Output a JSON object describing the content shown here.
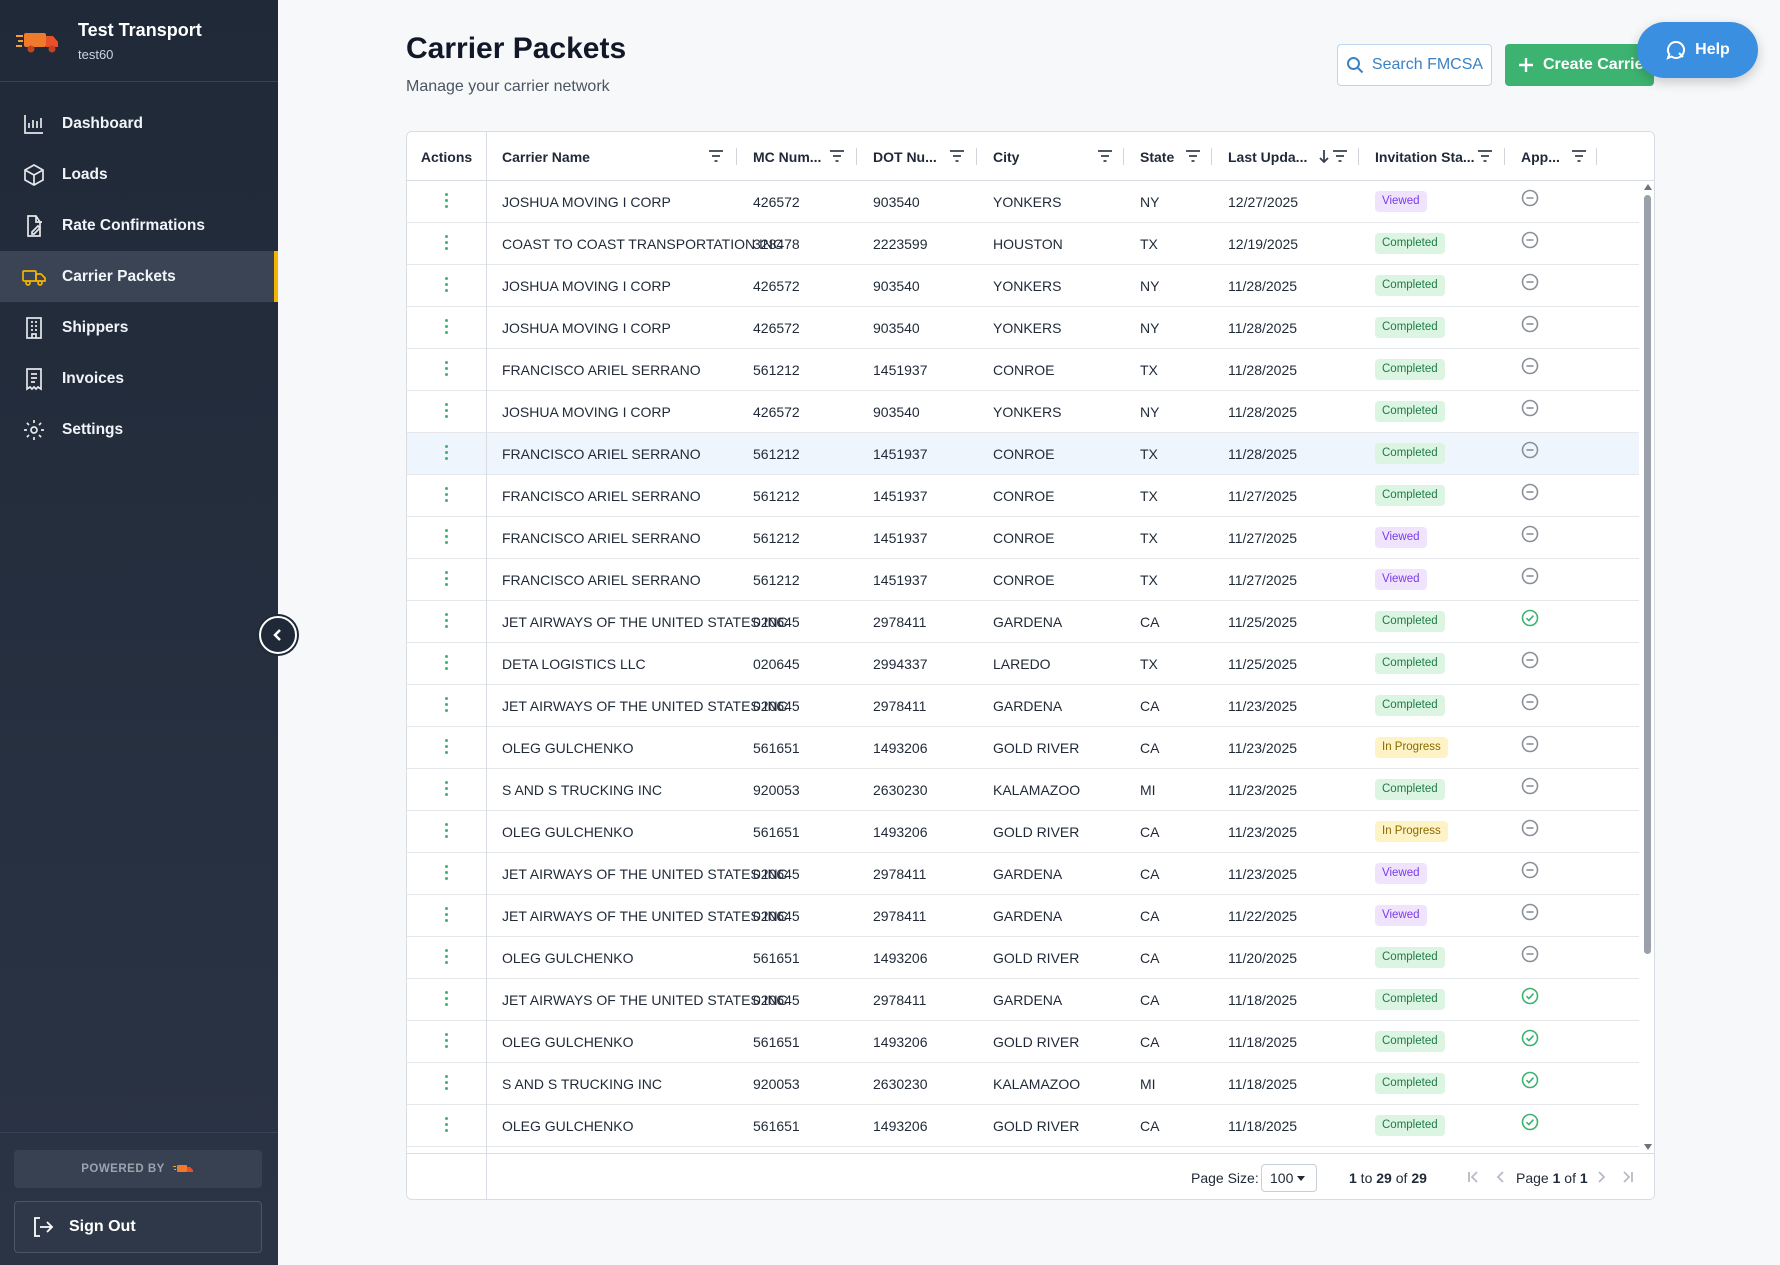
{
  "app": {
    "name": "Test Transport",
    "account": "test60"
  },
  "sidebar": {
    "items": [
      {
        "label": "Dashboard",
        "icon": "bar-chart-icon",
        "active": false
      },
      {
        "label": "Loads",
        "icon": "box-icon",
        "active": false
      },
      {
        "label": "Rate Confirmations",
        "icon": "file-edit-icon",
        "active": false
      },
      {
        "label": "Carrier Packets",
        "icon": "truck-icon",
        "active": true
      },
      {
        "label": "Shippers",
        "icon": "building-icon",
        "active": false
      },
      {
        "label": "Invoices",
        "icon": "receipt-icon",
        "active": false
      },
      {
        "label": "Settings",
        "icon": "gear-icon",
        "active": false
      }
    ],
    "powered_by": "POWERED BY",
    "sign_out": "Sign Out"
  },
  "header": {
    "title": "Carrier Packets",
    "subtitle": "Manage your carrier network",
    "search_fmcsa": "Search FMCSA",
    "create_carrier": "Create Carrier",
    "help": "Help"
  },
  "colors": {
    "accent_green": "#3cb371",
    "accent_blue": "#3b8fe0",
    "active_nav": "#f5b301",
    "sidebar_bg": "#1f2937"
  },
  "table": {
    "columns": {
      "actions": "Actions",
      "carrier_name": "Carrier Name",
      "mc_number": "MC Num...",
      "dot_number": "DOT Nu...",
      "city": "City",
      "state": "State",
      "last_updated": "Last Upda...",
      "invitation_status": "Invitation Sta...",
      "approved": "App..."
    },
    "rows": [
      {
        "name": "JOSHUA MOVING I CORP",
        "mc": "426572",
        "dot": "903540",
        "city": "YONKERS",
        "state": "NY",
        "updated": "12/27/2025",
        "status": "Viewed",
        "approved": false
      },
      {
        "name": "COAST TO COAST TRANSPORTATION INC",
        "mc": "328478",
        "dot": "2223599",
        "city": "HOUSTON",
        "state": "TX",
        "updated": "12/19/2025",
        "status": "Completed",
        "approved": false
      },
      {
        "name": "JOSHUA MOVING I CORP",
        "mc": "426572",
        "dot": "903540",
        "city": "YONKERS",
        "state": "NY",
        "updated": "11/28/2025",
        "status": "Completed",
        "approved": false
      },
      {
        "name": "JOSHUA MOVING I CORP",
        "mc": "426572",
        "dot": "903540",
        "city": "YONKERS",
        "state": "NY",
        "updated": "11/28/2025",
        "status": "Completed",
        "approved": false
      },
      {
        "name": "FRANCISCO ARIEL SERRANO",
        "mc": "561212",
        "dot": "1451937",
        "city": "CONROE",
        "state": "TX",
        "updated": "11/28/2025",
        "status": "Completed",
        "approved": false
      },
      {
        "name": "JOSHUA MOVING I CORP",
        "mc": "426572",
        "dot": "903540",
        "city": "YONKERS",
        "state": "NY",
        "updated": "11/28/2025",
        "status": "Completed",
        "approved": false
      },
      {
        "name": "FRANCISCO ARIEL SERRANO",
        "mc": "561212",
        "dot": "1451937",
        "city": "CONROE",
        "state": "TX",
        "updated": "11/28/2025",
        "status": "Completed",
        "approved": false,
        "highlighted": true
      },
      {
        "name": "FRANCISCO ARIEL SERRANO",
        "mc": "561212",
        "dot": "1451937",
        "city": "CONROE",
        "state": "TX",
        "updated": "11/27/2025",
        "status": "Completed",
        "approved": false
      },
      {
        "name": "FRANCISCO ARIEL SERRANO",
        "mc": "561212",
        "dot": "1451937",
        "city": "CONROE",
        "state": "TX",
        "updated": "11/27/2025",
        "status": "Viewed",
        "approved": false
      },
      {
        "name": "FRANCISCO ARIEL SERRANO",
        "mc": "561212",
        "dot": "1451937",
        "city": "CONROE",
        "state": "TX",
        "updated": "11/27/2025",
        "status": "Viewed",
        "approved": false
      },
      {
        "name": "JET AIRWAYS OF THE UNITED STATES INC",
        "mc": "020645",
        "dot": "2978411",
        "city": "GARDENA",
        "state": "CA",
        "updated": "11/25/2025",
        "status": "Completed",
        "approved": true
      },
      {
        "name": "DETA LOGISTICS LLC",
        "mc": "020645",
        "dot": "2994337",
        "city": "LAREDO",
        "state": "TX",
        "updated": "11/25/2025",
        "status": "Completed",
        "approved": false
      },
      {
        "name": "JET AIRWAYS OF THE UNITED STATES INC",
        "mc": "020645",
        "dot": "2978411",
        "city": "GARDENA",
        "state": "CA",
        "updated": "11/23/2025",
        "status": "Completed",
        "approved": false
      },
      {
        "name": "OLEG GULCHENKO",
        "mc": "561651",
        "dot": "1493206",
        "city": "GOLD RIVER",
        "state": "CA",
        "updated": "11/23/2025",
        "status": "In Progress",
        "approved": false
      },
      {
        "name": "S AND S TRUCKING INC",
        "mc": "920053",
        "dot": "2630230",
        "city": "KALAMAZOO",
        "state": "MI",
        "updated": "11/23/2025",
        "status": "Completed",
        "approved": false
      },
      {
        "name": "OLEG GULCHENKO",
        "mc": "561651",
        "dot": "1493206",
        "city": "GOLD RIVER",
        "state": "CA",
        "updated": "11/23/2025",
        "status": "In Progress",
        "approved": false
      },
      {
        "name": "JET AIRWAYS OF THE UNITED STATES INC",
        "mc": "020645",
        "dot": "2978411",
        "city": "GARDENA",
        "state": "CA",
        "updated": "11/23/2025",
        "status": "Viewed",
        "approved": false
      },
      {
        "name": "JET AIRWAYS OF THE UNITED STATES INC",
        "mc": "020645",
        "dot": "2978411",
        "city": "GARDENA",
        "state": "CA",
        "updated": "11/22/2025",
        "status": "Viewed",
        "approved": false
      },
      {
        "name": "OLEG GULCHENKO",
        "mc": "561651",
        "dot": "1493206",
        "city": "GOLD RIVER",
        "state": "CA",
        "updated": "11/20/2025",
        "status": "Completed",
        "approved": false
      },
      {
        "name": "JET AIRWAYS OF THE UNITED STATES INC",
        "mc": "020645",
        "dot": "2978411",
        "city": "GARDENA",
        "state": "CA",
        "updated": "11/18/2025",
        "status": "Completed",
        "approved": true
      },
      {
        "name": "OLEG GULCHENKO",
        "mc": "561651",
        "dot": "1493206",
        "city": "GOLD RIVER",
        "state": "CA",
        "updated": "11/18/2025",
        "status": "Completed",
        "approved": true
      },
      {
        "name": "S AND S TRUCKING INC",
        "mc": "920053",
        "dot": "2630230",
        "city": "KALAMAZOO",
        "state": "MI",
        "updated": "11/18/2025",
        "status": "Completed",
        "approved": true
      },
      {
        "name": "OLEG GULCHENKO",
        "mc": "561651",
        "dot": "1493206",
        "city": "GOLD RIVER",
        "state": "CA",
        "updated": "11/18/2025",
        "status": "Completed",
        "approved": true
      }
    ]
  },
  "pagination": {
    "page_size_label": "Page Size:",
    "page_size": "100",
    "range_from": "1",
    "range_to": "29",
    "total": "29",
    "current_page": "1",
    "total_pages": "1"
  }
}
